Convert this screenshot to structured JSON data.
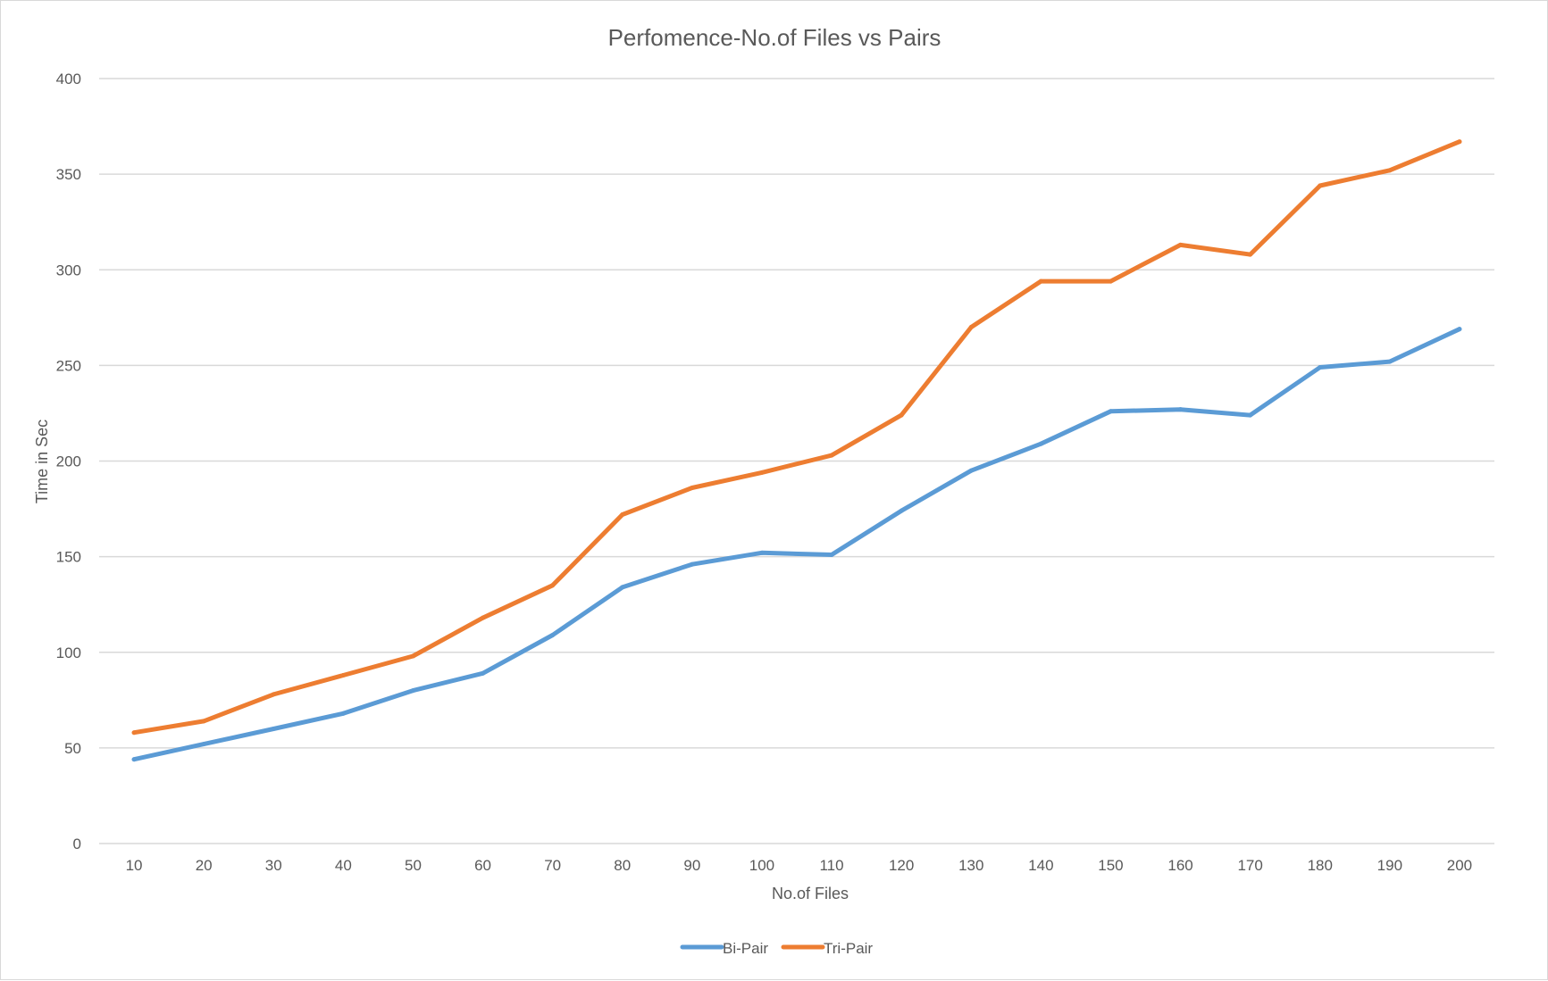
{
  "chart_data": {
    "type": "line",
    "title": "Perfomence-No.of  Files vs Pairs",
    "xlabel": "No.of Files",
    "ylabel": "Time in Sec",
    "categories": [
      "10",
      "20",
      "30",
      "40",
      "50",
      "60",
      "70",
      "80",
      "90",
      "100",
      "110",
      "120",
      "130",
      "140",
      "150",
      "160",
      "170",
      "180",
      "190",
      "200"
    ],
    "ylim": [
      0,
      400
    ],
    "yticks": [
      0,
      50,
      100,
      150,
      200,
      250,
      300,
      350,
      400
    ],
    "grid": true,
    "legend_position": "bottom",
    "series": [
      {
        "name": "Bi-Pair",
        "color": "#5b9bd5",
        "values": [
          44,
          52,
          60,
          68,
          80,
          89,
          109,
          134,
          146,
          152,
          151,
          174,
          195,
          209,
          226,
          227,
          224,
          249,
          252,
          269
        ]
      },
      {
        "name": "Tri-Pair",
        "color": "#ed7d31",
        "values": [
          58,
          64,
          78,
          88,
          98,
          118,
          135,
          172,
          186,
          194,
          203,
          224,
          270,
          294,
          294,
          313,
          308,
          344,
          352,
          367
        ]
      }
    ]
  }
}
